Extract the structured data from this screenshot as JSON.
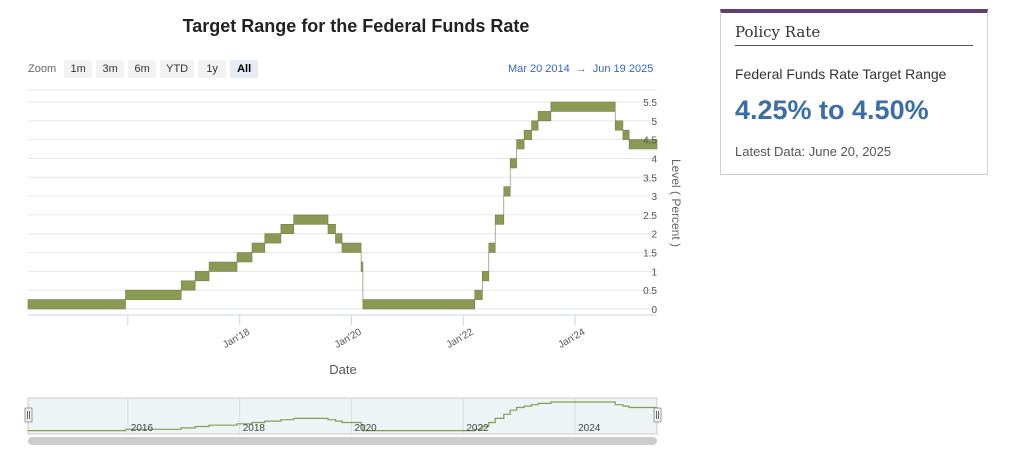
{
  "chart_title": "Target Range for the Federal Funds Rate",
  "zoom": {
    "label": "Zoom",
    "buttons": [
      "1m",
      "3m",
      "6m",
      "YTD",
      "1y",
      "All"
    ],
    "active": "All"
  },
  "date_range": {
    "from": "Mar 20 2014",
    "arrow": "→",
    "to": "Jun 19 2025"
  },
  "policy_panel": {
    "title": "Policy Rate",
    "label": "Federal Funds Rate Target Range",
    "value": "4.25% to 4.50%",
    "latest": "Latest Data: June 20, 2025"
  },
  "colors": {
    "series": "#8a9a55",
    "accent_bar": "#5e3f76",
    "value_text": "#3b6ea5",
    "link": "#3366cc"
  },
  "chart_data": {
    "type": "area",
    "title": "Target Range for the Federal Funds Rate",
    "xlabel": "Date",
    "ylabel": "Level ( Percent )",
    "ylim": [
      0,
      5.5
    ],
    "yticks": [
      "0",
      "0.5",
      "1",
      "1.5",
      "2",
      "2.5",
      "3",
      "3.5",
      "4",
      "4.5",
      "5",
      "5.5"
    ],
    "xticks": [
      "Jan'18",
      "Jan'20",
      "Jan'22",
      "Jan'24"
    ],
    "x_range": [
      "2014-03-20",
      "2025-06-19"
    ],
    "grid": true,
    "series": [
      {
        "points": [
          [
            "2014-03-20",
            0.0,
            0.25
          ],
          [
            "2015-12-17",
            0.25,
            0.5
          ],
          [
            "2016-12-15",
            0.5,
            0.75
          ],
          [
            "2017-03-16",
            0.75,
            1.0
          ],
          [
            "2017-06-15",
            1.0,
            1.25
          ],
          [
            "2017-12-14",
            1.25,
            1.5
          ],
          [
            "2018-03-22",
            1.5,
            1.75
          ],
          [
            "2018-06-14",
            1.75,
            2.0
          ],
          [
            "2018-09-27",
            2.0,
            2.25
          ],
          [
            "2018-12-20",
            2.25,
            2.5
          ],
          [
            "2019-08-01",
            2.0,
            2.25
          ],
          [
            "2019-09-19",
            1.75,
            2.0
          ],
          [
            "2019-10-31",
            1.5,
            1.75
          ],
          [
            "2020-03-04",
            1.0,
            1.25
          ],
          [
            "2020-03-16",
            0.0,
            0.25
          ],
          [
            "2022-03-17",
            0.25,
            0.5
          ],
          [
            "2022-05-05",
            0.75,
            1.0
          ],
          [
            "2022-06-16",
            1.5,
            1.75
          ],
          [
            "2022-07-28",
            2.25,
            2.5
          ],
          [
            "2022-09-22",
            3.0,
            3.25
          ],
          [
            "2022-11-03",
            3.75,
            4.0
          ],
          [
            "2022-12-15",
            4.25,
            4.5
          ],
          [
            "2023-02-02",
            4.5,
            4.75
          ],
          [
            "2023-03-23",
            4.75,
            5.0
          ],
          [
            "2023-05-04",
            5.0,
            5.25
          ],
          [
            "2023-07-27",
            5.25,
            5.5
          ],
          [
            "2024-09-19",
            4.75,
            5.0
          ],
          [
            "2024-11-08",
            4.5,
            4.75
          ],
          [
            "2024-12-19",
            4.25,
            4.5
          ],
          [
            "2025-06-19",
            4.25,
            4.5
          ]
        ]
      }
    ],
    "navigator": {
      "labels": [
        "2016",
        "2018",
        "2020",
        "2022",
        "2024"
      ]
    }
  }
}
